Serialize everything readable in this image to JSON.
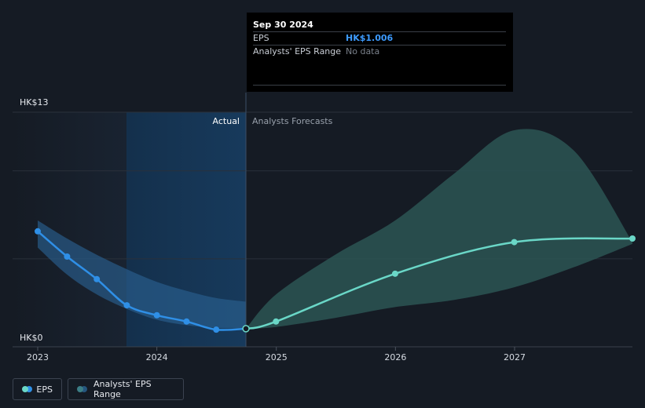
{
  "chart_data": {
    "type": "line",
    "x_ticks": [
      "2023",
      "2024",
      "2025",
      "2026",
      "2027"
    ],
    "y_ticks": [
      "HK$13",
      "HK$0"
    ],
    "ylim": [
      0,
      13
    ],
    "region_labels": {
      "actual": "Actual",
      "forecast": "Analysts Forecasts"
    },
    "series": [
      {
        "name": "EPS",
        "role": "actual",
        "color": "#2f8fe6",
        "points": [
          [
            "2023-01-01",
            6.4
          ],
          [
            "2023-04-01",
            5.0
          ],
          [
            "2023-07-01",
            3.75
          ],
          [
            "2023-10-01",
            2.3
          ],
          [
            "2024-01-01",
            1.75
          ],
          [
            "2024-04-01",
            1.4
          ],
          [
            "2024-07-01",
            0.95
          ],
          [
            "2024-09-30",
            1.006
          ]
        ]
      },
      {
        "name": "EPS",
        "role": "forecast",
        "color": "#6ad7c7",
        "points": [
          [
            "2024-09-30",
            1.006
          ],
          [
            "2024-12-31",
            1.4
          ],
          [
            "2025-12-31",
            4.05
          ],
          [
            "2026-12-31",
            5.8
          ],
          [
            "2027-12-31",
            6.0
          ]
        ]
      }
    ],
    "actual_range": {
      "x": [
        "2023-01-01",
        "2023-04-01",
        "2023-07-01",
        "2023-10-01",
        "2024-01-01",
        "2024-04-01",
        "2024-07-01",
        "2024-09-30"
      ],
      "upper": [
        7.0,
        6.0,
        5.1,
        4.3,
        3.6,
        3.1,
        2.7,
        2.5
      ],
      "lower": [
        5.5,
        4.0,
        2.9,
        2.1,
        1.5,
        1.2,
        1.05,
        1.0
      ]
    },
    "forecast_range": {
      "x": [
        "2024-09-30",
        "2024-12-31",
        "2025-06-30",
        "2025-12-31",
        "2026-06-30",
        "2026-12-31",
        "2027-06-30",
        "2027-12-31"
      ],
      "upper": [
        1.006,
        2.9,
        5.1,
        7.0,
        9.6,
        12.0,
        10.9,
        5.8
      ],
      "lower": [
        1.006,
        1.1,
        1.6,
        2.2,
        2.6,
        3.3,
        4.4,
        5.7
      ]
    }
  },
  "tooltip": {
    "date": "Sep 30 2024",
    "rows": [
      {
        "label": "EPS",
        "value": "HK$1.006"
      },
      {
        "label": "Analysts' EPS Range",
        "value": "No data"
      }
    ]
  },
  "legend": {
    "items": [
      {
        "label": "EPS",
        "colors": [
          "#6ad7c7",
          "#2f8fe6"
        ]
      },
      {
        "label": "Analysts' EPS Range",
        "colors": [
          "#3c7e86",
          "#25567f"
        ]
      }
    ]
  },
  "colors": {
    "background": "#151b24",
    "actual_band": "#15324f",
    "actual_range": "#2a5f8f",
    "forecast_range": "#2c5553",
    "gridline": "#2a313b"
  }
}
